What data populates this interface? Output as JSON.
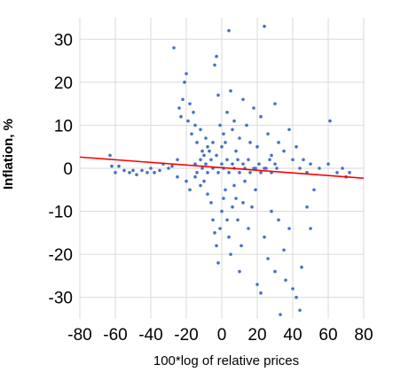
{
  "chart_data": {
    "type": "scatter",
    "xlabel": "100*log of relative prices",
    "ylabel": "Inflation, %",
    "xlim": [
      -80,
      80
    ],
    "ylim": [
      -35,
      35
    ],
    "x_ticks": [
      -80,
      -60,
      -40,
      -20,
      0,
      20,
      40,
      60,
      80
    ],
    "y_ticks": [
      30,
      20,
      10,
      0,
      -10,
      -20,
      -30
    ],
    "grid": true,
    "legend": "none",
    "colors": {
      "points": "#4472C4",
      "trend": "#FF0000",
      "grid": "#D9D9D9"
    },
    "trendline": {
      "x": [
        -80,
        80
      ],
      "y": [
        2.6,
        -2.3
      ]
    },
    "series": [
      {
        "points": [
          [
            -63,
            3
          ],
          [
            -62,
            0.5
          ],
          [
            -60,
            -1
          ],
          [
            -58,
            0.5
          ],
          [
            -55,
            -0.5
          ],
          [
            -52,
            -1
          ],
          [
            -50,
            -0.5
          ],
          [
            -48,
            -1.5
          ],
          [
            -45,
            -0.5
          ],
          [
            -42,
            -1
          ],
          [
            -40,
            0
          ],
          [
            -38,
            -1
          ],
          [
            -35,
            -0.5
          ],
          [
            -33,
            1
          ],
          [
            -30,
            0
          ],
          [
            -28,
            0.5
          ],
          [
            -27,
            28
          ],
          [
            -25,
            2
          ],
          [
            -24,
            14
          ],
          [
            -23,
            12
          ],
          [
            -22,
            16
          ],
          [
            -21,
            20
          ],
          [
            -20,
            22
          ],
          [
            -19,
            11
          ],
          [
            -18,
            15
          ],
          [
            -17,
            8
          ],
          [
            -16,
            13
          ],
          [
            -15,
            10
          ],
          [
            -14,
            6
          ],
          [
            -12,
            9
          ],
          [
            -11,
            4
          ],
          [
            -10,
            3
          ],
          [
            -9,
            7
          ],
          [
            -8,
            5
          ],
          [
            -7,
            4
          ],
          [
            -5,
            6
          ],
          [
            -4,
            24
          ],
          [
            -3,
            26
          ],
          [
            -2,
            17
          ],
          [
            -1,
            10
          ],
          [
            0,
            5
          ],
          [
            1,
            8
          ],
          [
            2,
            6
          ],
          [
            3,
            13
          ],
          [
            4,
            32
          ],
          [
            5,
            18
          ],
          [
            6,
            9
          ],
          [
            7,
            11
          ],
          [
            8,
            4
          ],
          [
            10,
            7
          ],
          [
            12,
            16
          ],
          [
            14,
            10
          ],
          [
            16,
            6
          ],
          [
            18,
            14
          ],
          [
            20,
            5
          ],
          [
            22,
            12
          ],
          [
            24,
            33
          ],
          [
            26,
            8
          ],
          [
            28,
            3
          ],
          [
            30,
            15
          ],
          [
            32,
            6
          ],
          [
            35,
            4
          ],
          [
            38,
            9
          ],
          [
            40,
            2
          ],
          [
            42,
            5
          ],
          [
            44,
            0
          ],
          [
            46,
            2
          ],
          [
            48,
            -1
          ],
          [
            50,
            1
          ],
          [
            55,
            0
          ],
          [
            60,
            1
          ],
          [
            61,
            11
          ],
          [
            65,
            -1
          ],
          [
            68,
            0
          ],
          [
            70,
            -2
          ],
          [
            72,
            -1
          ],
          [
            -25,
            -2
          ],
          [
            -20,
            -3
          ],
          [
            -18,
            -5
          ],
          [
            -15,
            -2
          ],
          [
            -12,
            -4
          ],
          [
            -10,
            -3
          ],
          [
            -8,
            -6
          ],
          [
            -6,
            -8
          ],
          [
            -5,
            -12
          ],
          [
            -4,
            -15
          ],
          [
            -3,
            -18
          ],
          [
            -2,
            -22
          ],
          [
            -1,
            -14
          ],
          [
            0,
            -10
          ],
          [
            1,
            -7
          ],
          [
            2,
            -5
          ],
          [
            3,
            -12
          ],
          [
            4,
            -16
          ],
          [
            5,
            -20
          ],
          [
            6,
            -9
          ],
          [
            7,
            -4
          ],
          [
            8,
            -7
          ],
          [
            9,
            -12
          ],
          [
            10,
            -24
          ],
          [
            11,
            -18
          ],
          [
            12,
            -8
          ],
          [
            13,
            -3
          ],
          [
            15,
            -14
          ],
          [
            17,
            -9
          ],
          [
            19,
            -5
          ],
          [
            20,
            -27
          ],
          [
            22,
            -29
          ],
          [
            24,
            -16
          ],
          [
            26,
            -21
          ],
          [
            28,
            -10
          ],
          [
            30,
            -24
          ],
          [
            32,
            -12
          ],
          [
            33,
            -34
          ],
          [
            35,
            -19
          ],
          [
            36,
            -26
          ],
          [
            38,
            -14
          ],
          [
            40,
            -28
          ],
          [
            42,
            -30
          ],
          [
            44,
            -33
          ],
          [
            45,
            -23
          ],
          [
            48,
            -9
          ],
          [
            50,
            -14
          ],
          [
            52,
            -5
          ],
          [
            -15,
            1
          ],
          [
            -12,
            2
          ],
          [
            -9,
            1
          ],
          [
            -6,
            2
          ],
          [
            -3,
            3
          ],
          [
            0,
            1
          ],
          [
            3,
            2
          ],
          [
            6,
            1
          ],
          [
            9,
            2
          ],
          [
            12,
            1
          ],
          [
            15,
            2
          ],
          [
            18,
            0
          ],
          [
            21,
            1
          ],
          [
            24,
            0
          ],
          [
            27,
            2
          ],
          [
            30,
            1
          ],
          [
            -14,
            -1
          ],
          [
            -11,
            0
          ],
          [
            -8,
            -1
          ],
          [
            -5,
            0
          ],
          [
            -2,
            -1
          ],
          [
            1,
            0
          ],
          [
            4,
            -1
          ],
          [
            7,
            0
          ],
          [
            10,
            -1
          ],
          [
            13,
            0
          ],
          [
            16,
            -1
          ],
          [
            19,
            0
          ],
          [
            22,
            -1
          ],
          [
            25,
            0
          ],
          [
            28,
            -1
          ],
          [
            31,
            0
          ]
        ]
      }
    ]
  }
}
